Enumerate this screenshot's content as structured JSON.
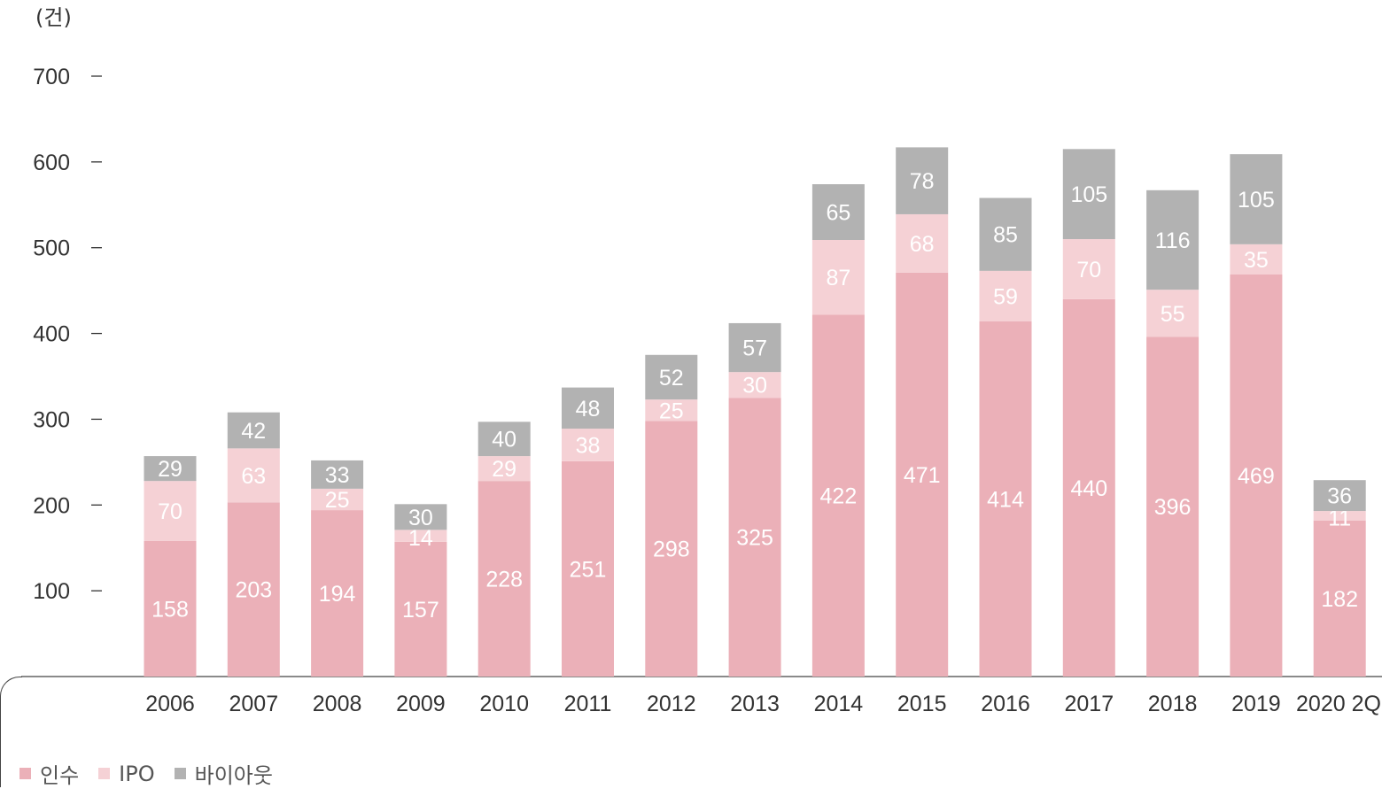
{
  "unit_label": "(건)",
  "colors": {
    "acquisition": "#ebb0b8",
    "ipo": "#f5d1d5",
    "buyout": "#b2b2b2",
    "axis": "#333333"
  },
  "chart_data": {
    "type": "bar",
    "stacked": true,
    "categories": [
      "2006",
      "2007",
      "2008",
      "2009",
      "2010",
      "2011",
      "2012",
      "2013",
      "2014",
      "2015",
      "2016",
      "2017",
      "2018",
      "2019",
      "2020 2Q"
    ],
    "series": [
      {
        "name": "인수",
        "values": [
          158,
          203,
          194,
          157,
          228,
          251,
          298,
          325,
          422,
          471,
          414,
          440,
          396,
          469,
          182
        ]
      },
      {
        "name": "IPO",
        "values": [
          70,
          63,
          25,
          14,
          29,
          38,
          25,
          30,
          87,
          68,
          59,
          70,
          55,
          35,
          11
        ]
      },
      {
        "name": "바이아웃",
        "values": [
          29,
          42,
          33,
          30,
          40,
          48,
          52,
          57,
          65,
          78,
          85,
          105,
          116,
          105,
          36
        ]
      }
    ],
    "ylim": [
      0,
      700
    ],
    "yticks": [
      "100",
      "200",
      "300",
      "400",
      "500",
      "600",
      "700"
    ],
    "ylabel": "(건)",
    "legend_position": "bottom-left",
    "grid": false
  }
}
